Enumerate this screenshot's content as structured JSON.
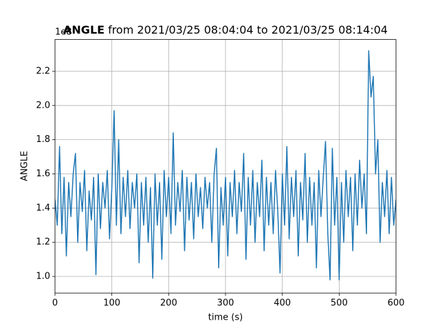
{
  "chart_data": {
    "type": "line",
    "title_bold": "ANGLE",
    "title": "from 2021/03/25 08:04:04 to 2021/03/25 08:14:04",
    "offset_label": "1e8",
    "xlabel": "time (s)",
    "ylabel": "ANGLE",
    "xlim": [
      0,
      600
    ],
    "xticks": [
      0,
      100,
      200,
      300,
      400,
      500,
      600
    ],
    "ylim": [
      0.903,
      2.386
    ],
    "yticks": [
      {
        "value": 1,
        "label": "1.0"
      },
      1.2,
      1.4,
      1.6,
      1.8,
      {
        "value": 2,
        "label": "2.0"
      },
      2.2
    ],
    "grid": true,
    "x": [
      0,
      4,
      8,
      12,
      16,
      20,
      24,
      28,
      32,
      36,
      40,
      44,
      48,
      52,
      56,
      60,
      64,
      68,
      72,
      76,
      80,
      84,
      88,
      92,
      96,
      100,
      104,
      108,
      112,
      116,
      120,
      124,
      128,
      132,
      136,
      140,
      144,
      148,
      152,
      156,
      160,
      164,
      168,
      172,
      176,
      180,
      184,
      188,
      192,
      196,
      200,
      204,
      208,
      212,
      216,
      220,
      224,
      228,
      232,
      236,
      240,
      244,
      248,
      252,
      256,
      260,
      264,
      268,
      272,
      276,
      280,
      284,
      288,
      292,
      296,
      300,
      304,
      308,
      312,
      316,
      320,
      324,
      328,
      332,
      336,
      340,
      344,
      348,
      352,
      356,
      360,
      364,
      368,
      372,
      376,
      380,
      384,
      388,
      392,
      396,
      400,
      404,
      408,
      412,
      416,
      420,
      424,
      428,
      432,
      436,
      440,
      444,
      448,
      452,
      456,
      460,
      464,
      468,
      472,
      476,
      480,
      484,
      488,
      492,
      496,
      500,
      504,
      508,
      512,
      516,
      520,
      524,
      528,
      532,
      536,
      540,
      544,
      548,
      552,
      556,
      560,
      564,
      568,
      572,
      576,
      580,
      584,
      588,
      592,
      596,
      600
    ],
    "series": [
      {
        "name": "ANGLE",
        "color": "#1f77b4",
        "values": [
          1.45,
          1.3,
          1.76,
          1.25,
          1.58,
          1.12,
          1.55,
          1.35,
          1.6,
          1.72,
          1.2,
          1.55,
          1.38,
          1.62,
          1.15,
          1.5,
          1.33,
          1.58,
          1.01,
          1.6,
          1.28,
          1.55,
          1.4,
          1.62,
          1.22,
          1.52,
          1.97,
          1.3,
          1.8,
          1.25,
          1.58,
          1.35,
          1.62,
          1.28,
          1.55,
          1.4,
          1.6,
          1.08,
          1.55,
          1.3,
          1.58,
          1.2,
          1.52,
          0.99,
          1.6,
          1.3,
          1.55,
          1.1,
          1.62,
          1.35,
          1.58,
          1.25,
          1.84,
          1.3,
          1.55,
          1.38,
          1.62,
          1.15,
          1.58,
          1.33,
          1.55,
          1.22,
          1.6,
          1.35,
          1.52,
          1.28,
          1.58,
          1.4,
          1.55,
          1.2,
          1.6,
          1.75,
          1.05,
          1.52,
          1.3,
          1.58,
          1.12,
          1.55,
          1.35,
          1.62,
          1.25,
          1.55,
          1.38,
          1.72,
          1.1,
          1.58,
          1.3,
          1.62,
          1.2,
          1.55,
          1.35,
          1.68,
          1.15,
          1.58,
          1.3,
          1.55,
          1.25,
          1.62,
          1.38,
          1.02,
          1.6,
          1.3,
          1.76,
          1.22,
          1.58,
          1.35,
          1.62,
          1.12,
          1.55,
          1.33,
          1.72,
          1.2,
          1.58,
          1.3,
          1.55,
          1.05,
          1.62,
          1.35,
          1.58,
          1.79,
          1.25,
          0.98,
          1.75,
          1.3,
          1.58,
          0.98,
          1.55,
          1.2,
          1.62,
          1.35,
          1.58,
          1.15,
          1.6,
          1.3,
          1.68,
          1.4,
          1.6,
          1.25,
          2.32,
          2.05,
          2.17,
          1.6,
          1.8,
          1.2,
          1.55,
          1.35,
          1.62,
          1.25,
          1.58,
          1.3,
          1.45
        ]
      }
    ]
  }
}
